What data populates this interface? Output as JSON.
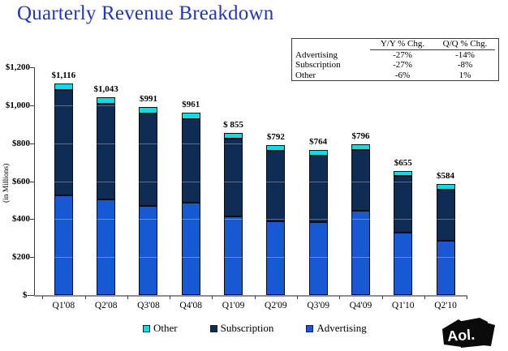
{
  "slide": {
    "title": "Quarterly Revenue Breakdown",
    "title_color": "#2335C2"
  },
  "change_table": {
    "col_headers": [
      "Y/Y % Chg.",
      "Q/Q % Chg."
    ],
    "rows": [
      {
        "label": "Advertising",
        "yy": "-27%",
        "qq": "-14%"
      },
      {
        "label": "Subscription",
        "yy": "-27%",
        "qq": "-8%"
      },
      {
        "label": "Other",
        "yy": "-6%",
        "qq": "1%"
      }
    ]
  },
  "chart_data": {
    "type": "bar",
    "stacked": true,
    "ylabel": "(in Millions)",
    "ylim": [
      0,
      1200
    ],
    "ytick_interval": 200,
    "ytick_labels": [
      "$-",
      "$200",
      "$400",
      "$600",
      "$800",
      "$1,000",
      "$1,200"
    ],
    "categories": [
      "Q1'08",
      "Q2'08",
      "Q3'08",
      "Q4'08",
      "Q1'09",
      "Q2'09",
      "Q3'09",
      "Q4'09",
      "Q1'10",
      "Q2'10"
    ],
    "series": [
      {
        "name": "Advertising",
        "color": "#1659D2",
        "values": [
          525,
          505,
          470,
          487,
          415,
          390,
          383,
          444,
          331,
          285
        ]
      },
      {
        "name": "Subscription",
        "color": "#0F2C55",
        "values": [
          556,
          502,
          486,
          440,
          408,
          372,
          351,
          320,
          296,
          271
        ]
      },
      {
        "name": "Other",
        "color": "#00E0E8",
        "values": [
          35,
          36,
          35,
          34,
          32,
          30,
          30,
          32,
          28,
          28
        ]
      }
    ],
    "totals": [
      1116,
      1043,
      991,
      961,
      855,
      792,
      764,
      796,
      655,
      584
    ],
    "total_labels": [
      "$1,116",
      "$1,043",
      "$991",
      "$961",
      "$ 855",
      "$792",
      "$764",
      "$796",
      "$655",
      "$584"
    ],
    "legend": [
      "Other",
      "Subscription",
      "Advertising"
    ],
    "legend_position": "bottom",
    "grid": "faint horizontal lines visible over bars at each $200 level"
  },
  "logo": {
    "text": "Aol."
  }
}
